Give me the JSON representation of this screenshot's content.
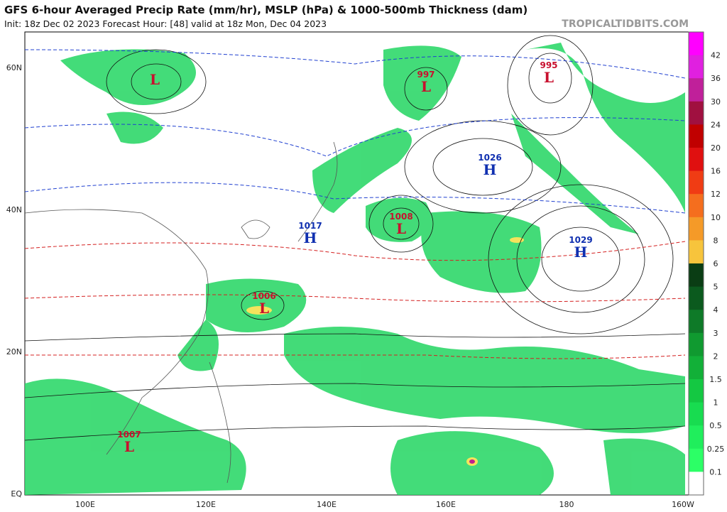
{
  "header": {
    "title": "GFS 6-hour Averaged Precip Rate (mm/hr), MSLP (hPa) & 1000-500mb Thickness (dam)",
    "subtitle": "Init: 18z Dec 02 2023   Forecast Hour: [48]   valid at 18z Mon, Dec 04 2023",
    "credit": "TROPICALTIDBITS.COM"
  },
  "map": {
    "lat_labels": [
      "60N",
      "40N",
      "20N",
      "EQ"
    ],
    "lon_labels": [
      "100E",
      "120E",
      "140E",
      "160E",
      "180",
      "160W"
    ],
    "centers": [
      {
        "letter": "L"
      },
      {
        "pressure": "997",
        "letter": "L"
      },
      {
        "pressure": "995",
        "letter": "L"
      },
      {
        "pressure": "1026",
        "letter": "H"
      },
      {
        "pressure": "1008",
        "letter": "L"
      },
      {
        "pressure": "1017",
        "letter": "H"
      },
      {
        "pressure": "1029",
        "letter": "H"
      },
      {
        "pressure": "1006",
        "letter": "L"
      },
      {
        "pressure": "1007",
        "letter": "L"
      }
    ]
  },
  "colorbar": {
    "labels": [
      42,
      36,
      30,
      24,
      20,
      16,
      12,
      10,
      8,
      6,
      5,
      4,
      3,
      2,
      1.5,
      1,
      0.5,
      0.25,
      0.1
    ]
  }
}
